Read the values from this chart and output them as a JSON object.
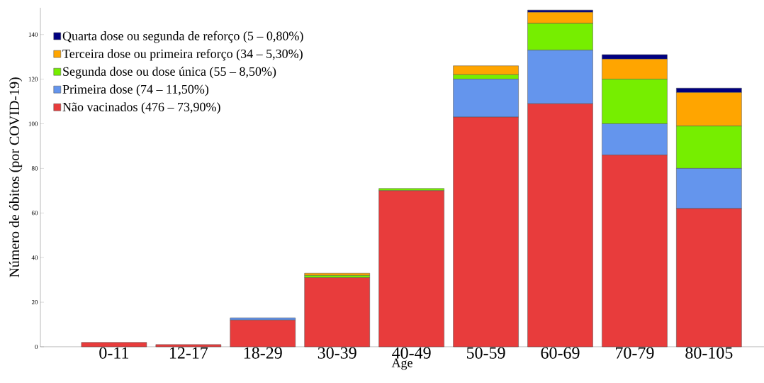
{
  "chart_data": {
    "type": "bar",
    "stacked": true,
    "xlabel": "Age",
    "ylabel": "Número de óbitos (por COVID-19)",
    "categories": [
      "0-11",
      "12-17",
      "18-29",
      "30-39",
      "40-49",
      "50-59",
      "60-69",
      "70-79",
      "80-105"
    ],
    "series": [
      {
        "name": "Não vacinados (476 – 73,90%)",
        "color": "#e83c3c",
        "values": [
          2,
          1,
          12,
          31,
          70,
          103,
          109,
          86,
          62
        ]
      },
      {
        "name": "Primeira dose (74 – 11,50%)",
        "color": "#6495ed",
        "values": [
          0,
          0,
          1,
          0,
          0,
          17,
          24,
          14,
          18
        ]
      },
      {
        "name": "Segunda dose ou dose única (55 – 8,50%)",
        "color": "#76ee00",
        "values": [
          0,
          0,
          0,
          1,
          1,
          2,
          12,
          20,
          19
        ]
      },
      {
        "name": "Terceira dose ou primeira reforço (34 – 5,30%)",
        "color": "#ffa500",
        "values": [
          0,
          0,
          0,
          1,
          0,
          4,
          5,
          9,
          15
        ]
      },
      {
        "name": "Quarta dose ou segunda de reforço (5 – 0,80%)",
        "color": "#000080",
        "values": [
          0,
          0,
          0,
          0,
          0,
          0,
          1,
          2,
          2
        ]
      }
    ],
    "ylim": [
      0,
      152
    ],
    "yticks": [
      0,
      20,
      40,
      60,
      80,
      100,
      120,
      140
    ],
    "legend": "top left",
    "grid": false
  }
}
